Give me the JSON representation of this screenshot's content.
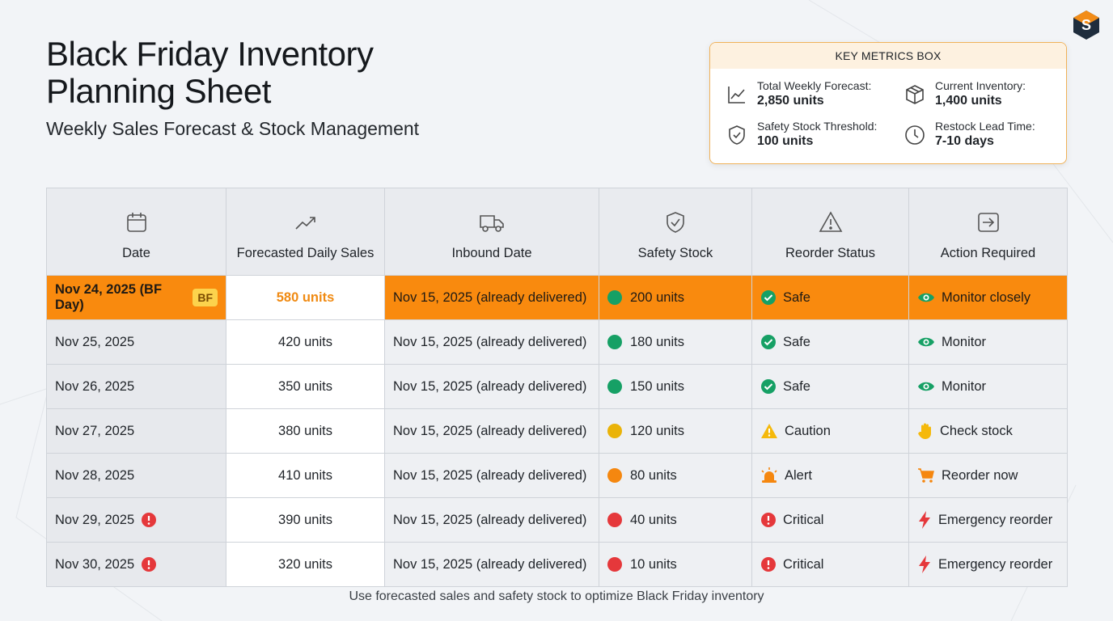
{
  "header": {
    "title": "Black Friday Inventory Planning Sheet",
    "subtitle": "Weekly Sales Forecast & Stock Management",
    "logo": "S"
  },
  "metrics": {
    "title": "KEY METRICS BOX",
    "items": [
      {
        "label": "Total Weekly Forecast:",
        "value": "2,850 units"
      },
      {
        "label": "Current Inventory:",
        "value": "1,400 units"
      },
      {
        "label": "Safety Stock Threshold:",
        "value": "100 units"
      },
      {
        "label": "Restock Lead Time:",
        "value": "7-10 days"
      }
    ]
  },
  "table": {
    "columns": [
      "Date",
      "Forecasted Daily Sales",
      "Inbound Date",
      "Safety Stock",
      "Reorder Status",
      "Action Required"
    ],
    "rows": [
      {
        "cells": [
          "Nov 24, 2025 (BF Day)",
          "580 units",
          "Nov 15, 2025 (already delivered)",
          "200 units",
          "Safe",
          "Monitor closely"
        ],
        "badge": "BF"
      },
      {
        "cells": [
          "Nov 25, 2025",
          "420 units",
          "Nov 15, 2025 (already delivered)",
          "180 units",
          "Safe",
          "Monitor"
        ]
      },
      {
        "cells": [
          "Nov 26, 2025",
          "350 units",
          "Nov 15, 2025 (already delivered)",
          "150 units",
          "Safe",
          "Monitor"
        ]
      },
      {
        "cells": [
          "Nov 27, 2025",
          "380 units",
          "Nov 15, 2025 (already delivered)",
          "120 units",
          "Caution",
          "Check stock"
        ]
      },
      {
        "cells": [
          "Nov 28, 2025",
          "410 units",
          "Nov 15, 2025 (already delivered)",
          "80 units",
          "Alert",
          "Reorder now"
        ]
      },
      {
        "cells": [
          "Nov 29, 2025",
          "390 units",
          "Nov 15, 2025 (already delivered)",
          "40 units",
          "Critical",
          "Emergency reorder"
        ]
      },
      {
        "cells": [
          "Nov 30, 2025",
          "320 units",
          "Nov 15, 2025 (already delivered)",
          "10 units",
          "Critical",
          "Emergency reorder"
        ]
      }
    ]
  },
  "footer": {
    "note": "Use forecasted sales and safety stock to optimize Black Friday inventory"
  }
}
